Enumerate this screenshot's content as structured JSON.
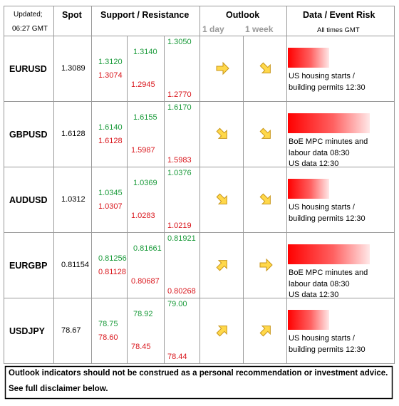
{
  "header": {
    "updated": "Updated;",
    "time": "06:27 GMT",
    "spot": "Spot",
    "sr": "Support / Resistance",
    "outlook": "Outlook",
    "day": "1 day",
    "week": "1 week",
    "data": "Data / Event Risk",
    "times": "All times GMT"
  },
  "rows": [
    {
      "pair": "EURUSD",
      "spot": "1.3089",
      "levels": [
        [
          "1.3120",
          "1.3074"
        ],
        [
          "1.3140",
          "1.2945"
        ],
        [
          "1.3050",
          "1.2770"
        ]
      ],
      "event": [
        "US housing starts /",
        "building permits 12:30"
      ]
    },
    {
      "pair": "GBPUSD",
      "spot": "1.6128",
      "levels": [
        [
          "1.6140",
          "1.6128"
        ],
        [
          "1.6155",
          "1.5987"
        ],
        [
          "1.6170",
          "1.5983"
        ]
      ],
      "event": [
        "BoE MPC minutes and",
        "labour data 08:30",
        "US data 12:30"
      ]
    },
    {
      "pair": "AUDUSD",
      "spot": "1.0312",
      "levels": [
        [
          "1.0345",
          "1.0307"
        ],
        [
          "1.0369",
          "1.0283"
        ],
        [
          "1.0376",
          "1.0219"
        ]
      ],
      "event": [
        "US housing starts /",
        "building permits 12:30"
      ]
    },
    {
      "pair": "EURGBP",
      "spot": "0.81154",
      "levels": [
        [
          "0.81256",
          "0.81128"
        ],
        [
          "0.81661",
          "0.80687"
        ],
        [
          "0.81921",
          "0.80268"
        ]
      ],
      "event": [
        "BoE MPC minutes and",
        "labour data 08:30",
        "US data 12:30"
      ]
    },
    {
      "pair": "USDJPY",
      "spot": "78.67",
      "levels": [
        [
          "78.75",
          "78.60"
        ],
        [
          "78.92",
          "78.45"
        ],
        [
          "79.00",
          "78.44"
        ]
      ],
      "event": [
        "US housing starts /",
        "building permits 12:30"
      ]
    }
  ],
  "footer": [
    "Outlook indicators should not be construed as a personal recommendation or investment advice.",
    "See full disclaimer below."
  ]
}
